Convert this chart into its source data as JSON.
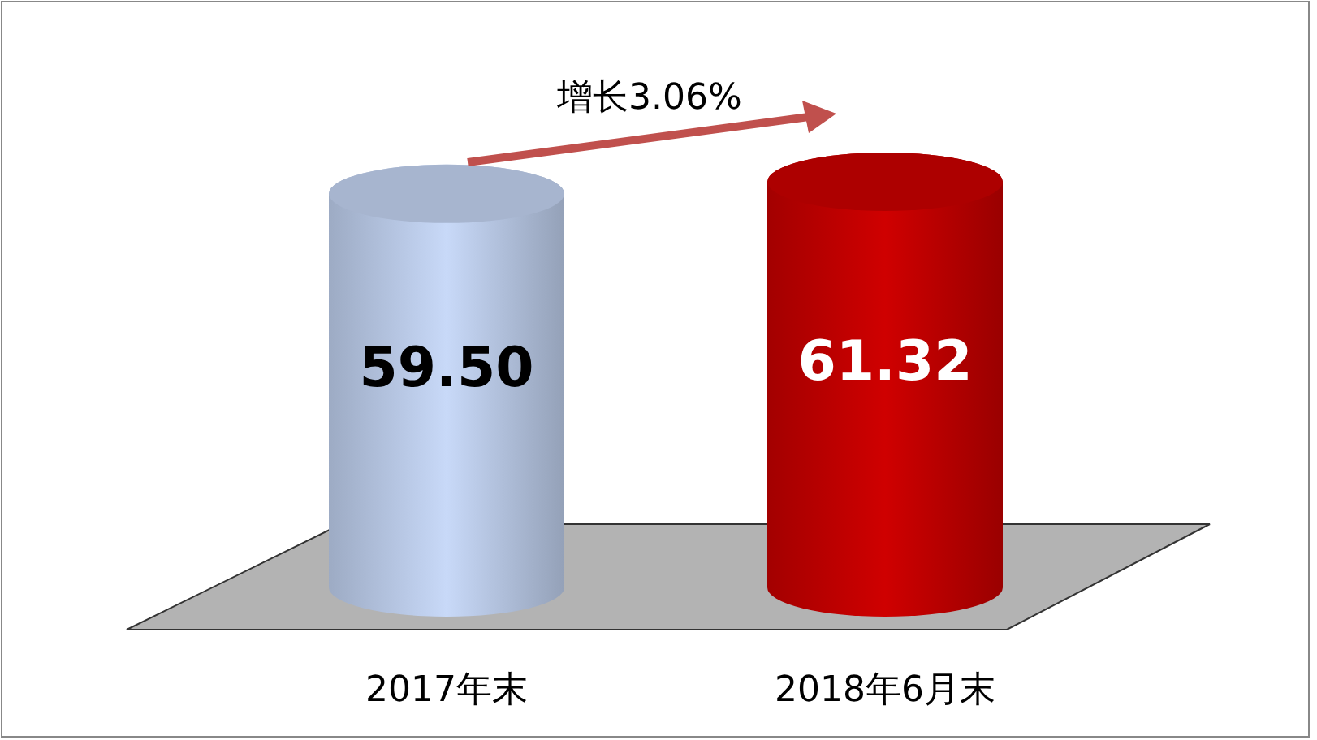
{
  "chart_data": {
    "type": "bar",
    "categories": [
      "2017年末",
      "2018年6月末"
    ],
    "values": [
      59.5,
      61.32
    ],
    "value_labels": [
      "59.50",
      "61.32"
    ],
    "colors": [
      "#b9c9e6",
      "#c00000"
    ],
    "annotations": [
      "增长3.06%"
    ]
  }
}
